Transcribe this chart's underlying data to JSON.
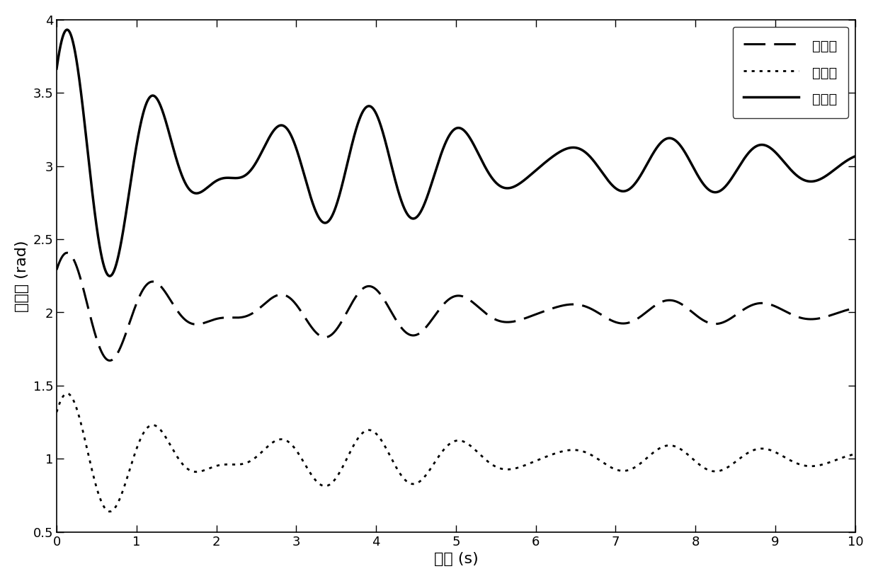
{
  "title": "",
  "xlabel": "时间 (s)",
  "ylabel": "姿态角 (rad)",
  "xlim": [
    0,
    10
  ],
  "ylim": [
    0.5,
    4.0
  ],
  "yticks": [
    0.5,
    1.0,
    1.5,
    2.0,
    2.5,
    3.0,
    3.5,
    4.0
  ],
  "xticks": [
    0,
    1,
    2,
    3,
    4,
    5,
    6,
    7,
    8,
    9,
    10
  ],
  "legend_labels": [
    "滚转角",
    "偏航角",
    "俦仰角"
  ],
  "line_color": "#000000",
  "figsize": [
    12.4,
    8.21
  ],
  "dpi": 100,
  "steady_roll": 2.0,
  "steady_yaw": 1.0,
  "steady_pitch": 3.0,
  "background_color": "#ffffff",
  "font_size_label": 16,
  "font_size_tick": 13,
  "font_size_legend": 14
}
